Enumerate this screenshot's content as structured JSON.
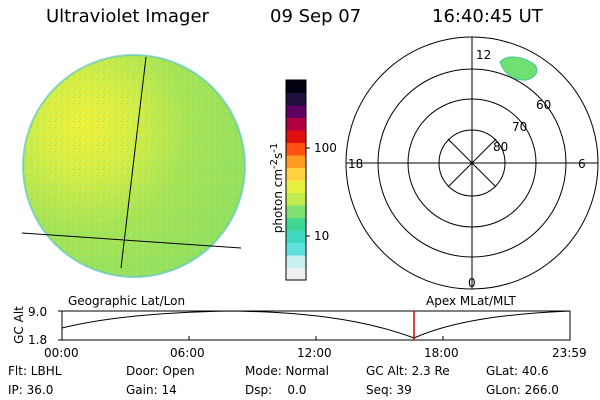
{
  "header": {
    "title": "Ultraviolet Imager",
    "date": "09 Sep 07",
    "time": "16:40:45 UT"
  },
  "colorbar": {
    "unit_label": "photon cm^-2 s^-1",
    "ticks": [
      "100",
      "10"
    ],
    "colors": [
      "#eef0f0",
      "#c8f0f0",
      "#60e0e0",
      "#40d8c0",
      "#40d890",
      "#80e070",
      "#c0ec50",
      "#e8f040",
      "#ffd040",
      "#ff9a20",
      "#ff5010",
      "#e01010",
      "#b00040",
      "#600060",
      "#201040",
      "#000010"
    ]
  },
  "polar_plot": {
    "mlt_labels": {
      "top": "12",
      "left": "18",
      "right": "6",
      "bottom": "0"
    },
    "lat_labels": [
      "80",
      "70",
      "60"
    ]
  },
  "timeline": {
    "left_label": "Geographic Lat/Lon",
    "right_label": "Apex MLat/MLT",
    "axis_label": "GC Alt",
    "y_top": "9.0",
    "y_bottom": "1.8",
    "x_ticks": [
      "00:00",
      "06:00",
      "12:00",
      "18:00",
      "23:59"
    ],
    "current_marker_color": "#cc0000"
  },
  "info": {
    "filter": "Flt: LBHL",
    "ip": "IP: 36.0",
    "door": "Door: Open",
    "gain": "Gain: 14",
    "mode": "Mode: Normal",
    "dsp": "Dsp:    0.0",
    "gc_alt": "GC Alt: 2.3 Re",
    "seq": "Seq: 39",
    "glat": "GLat:  40.6",
    "glon": "GLon: 266.0"
  }
}
